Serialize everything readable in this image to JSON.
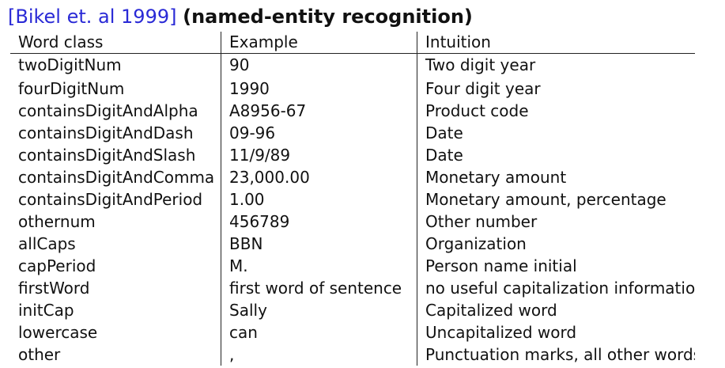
{
  "title": {
    "citation": "[Bikel et. al 1999]",
    "topic": "(named-entity recognition)"
  },
  "table": {
    "headers": [
      "Word class",
      "Example",
      "Intuition"
    ],
    "rows": [
      [
        "twoDigitNum",
        "90",
        "Two digit year"
      ],
      [
        "fourDigitNum",
        "1990",
        "Four digit year"
      ],
      [
        "containsDigitAndAlpha",
        "A8956-67",
        "Product code"
      ],
      [
        "containsDigitAndDash",
        "09-96",
        "Date"
      ],
      [
        "containsDigitAndSlash",
        "11/9/89",
        "Date"
      ],
      [
        "containsDigitAndComma",
        "23,000.00",
        "Monetary amount"
      ],
      [
        "containsDigitAndPeriod",
        "1.00",
        "Monetary amount, percentage"
      ],
      [
        "othernum",
        "456789",
        "Other number"
      ],
      [
        "allCaps",
        "BBN",
        "Organization"
      ],
      [
        "capPeriod",
        "M.",
        "Person name initial"
      ],
      [
        "firstWord",
        "first word of sentence",
        "no useful capitalization information"
      ],
      [
        "initCap",
        "Sally",
        "Capitalized word"
      ],
      [
        "lowercase",
        "can",
        "Uncapitalized word"
      ],
      [
        "other",
        ",",
        "Punctuation marks, all other words"
      ]
    ]
  },
  "colors": {
    "citation": "#2a2ad6",
    "text": "#111111"
  }
}
